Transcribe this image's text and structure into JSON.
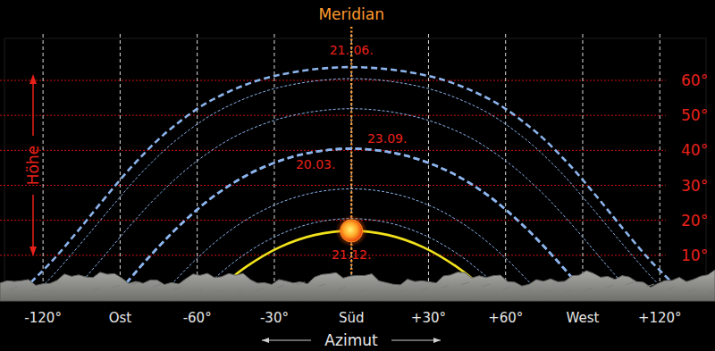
{
  "chart_data": {
    "type": "line",
    "xlabel": "Azimut",
    "ylabel": "Höhe",
    "xlim": [
      -135,
      138
    ],
    "ylim": [
      0,
      72
    ],
    "xticks": [
      {
        "value": -120,
        "label": "-120°"
      },
      {
        "value": -90,
        "label": "Ost"
      },
      {
        "value": -60,
        "label": "-60°"
      },
      {
        "value": -30,
        "label": "-30°"
      },
      {
        "value": 0,
        "label": "Süd"
      },
      {
        "value": 30,
        "label": "+30°"
      },
      {
        "value": 60,
        "label": "+60°"
      },
      {
        "value": 90,
        "label": "West"
      },
      {
        "value": 120,
        "label": "+120°"
      }
    ],
    "yticks": [
      {
        "value": 10,
        "label": "10°"
      },
      {
        "value": 20,
        "label": "20°"
      },
      {
        "value": 30,
        "label": "30°"
      },
      {
        "value": 40,
        "label": "40°"
      },
      {
        "value": 50,
        "label": "50°"
      },
      {
        "value": 60,
        "label": "60°"
      }
    ],
    "grid": true,
    "annotations": [
      {
        "text": "Meridian",
        "x": 0
      }
    ],
    "series": [
      {
        "name": "21. 06.",
        "color": "#8cb4ec",
        "line_style": "dashed",
        "x": [
          -127.4,
          -116.3,
          -105.7,
          -95,
          -83.5,
          -70.1,
          -53,
          -29.8,
          0,
          29.8,
          53,
          70.1,
          83.5,
          95,
          105.7,
          116.3,
          127.4
        ],
        "values": [
          0.3,
          8.5,
          17.6,
          27.2,
          36.9,
          46.3,
          54.9,
          61.3,
          63.8,
          61.3,
          54.9,
          46.3,
          36.9,
          27.2,
          17.6,
          8.5,
          0.3
        ]
      },
      {
        "color": "#8cb4ec",
        "line_style": "dotted",
        "x": [
          -121.7,
          -114.1,
          -103.3,
          -92.3,
          -80.6,
          -66.9,
          -49.8,
          -27.5,
          0,
          27.5,
          49.8,
          66.9,
          80.6,
          92.3,
          103.3,
          114.1,
          121.7
        ],
        "values": [
          0,
          5.9,
          15.1,
          24.7,
          34.4,
          43.7,
          52,
          58.1,
          60.5,
          58.1,
          52,
          43.7,
          34.4,
          24.7,
          15.1,
          5.9,
          0
        ]
      },
      {
        "color": "#8cb4ec",
        "line_style": "dotted",
        "x": [
          -107.8,
          -97.5,
          -86.2,
          -74,
          -60.2,
          -43.6,
          -23.3,
          0,
          23.3,
          43.6,
          60.2,
          74,
          86.2,
          97.5,
          107.8
        ],
        "values": [
          0,
          8.7,
          18.4,
          28,
          36.9,
          44.6,
          49.9,
          51.9,
          49.9,
          44.6,
          36.9,
          28,
          18.4,
          8.7,
          0
        ]
      },
      {
        "name": "20.03.",
        "color": "#8cb4ec",
        "line_style": "dashed",
        "x": [
          -90,
          -78.5,
          -66.3,
          -52.8,
          -37.2,
          -19.4,
          0,
          19.4,
          37.2,
          52.8,
          66.3,
          78.5,
          90
        ],
        "values": [
          0,
          9.7,
          18.9,
          27.3,
          34.2,
          38.8,
          40.5,
          38.8,
          34.2,
          27.3,
          18.9,
          9.7,
          0
        ]
      },
      {
        "name": "23.09.",
        "color": "#8cb4ec",
        "line_style": "dashed",
        "x": [
          -90,
          -78.5,
          -66.3,
          -52.8,
          -37.2,
          -19.4,
          0,
          19.4,
          37.2,
          52.8,
          66.3,
          78.5,
          90
        ],
        "values": [
          0,
          9.7,
          18.9,
          27.3,
          34.2,
          38.8,
          40.5,
          38.8,
          34.2,
          27.3,
          18.9,
          9.7,
          0
        ]
      },
      {
        "color": "#8cb4ec",
        "line_style": "dotted",
        "x": [
          -72.3,
          -71.2,
          -59.4,
          -46.6,
          -32.3,
          -16.6,
          0,
          16.6,
          32.3,
          46.6,
          59.4,
          71.2,
          72.3
        ],
        "values": [
          0,
          0.8,
          9.6,
          17.4,
          23.6,
          27.6,
          29,
          27.6,
          23.6,
          17.4,
          9.6,
          0.8,
          0
        ]
      },
      {
        "color": "#8cb4ec",
        "line_style": "dotted",
        "x": [
          -58.3,
          -54.6,
          -42.5,
          -29.2,
          -15,
          0,
          15,
          29.2,
          42.5,
          54.6,
          58.3
        ],
        "values": [
          0,
          2.6,
          9.8,
          15.5,
          19.2,
          20.5,
          19.2,
          15.5,
          9.8,
          2.6,
          0
        ]
      },
      {
        "name": "21.12.",
        "color": "#f2e21c",
        "line_style": "solid",
        "x": [
          -52.6,
          -40.8,
          -28,
          -14.3,
          0,
          14.3,
          28,
          40.8,
          52.6
        ],
        "values": [
          0,
          6.8,
          12.3,
          15.8,
          17,
          15.8,
          12.3,
          6.8,
          0
        ]
      },
      {
        "type": "scatter",
        "marker": "sun",
        "color": "#ff8a1c",
        "x": [
          0
        ],
        "values": [
          17
        ]
      }
    ]
  }
}
